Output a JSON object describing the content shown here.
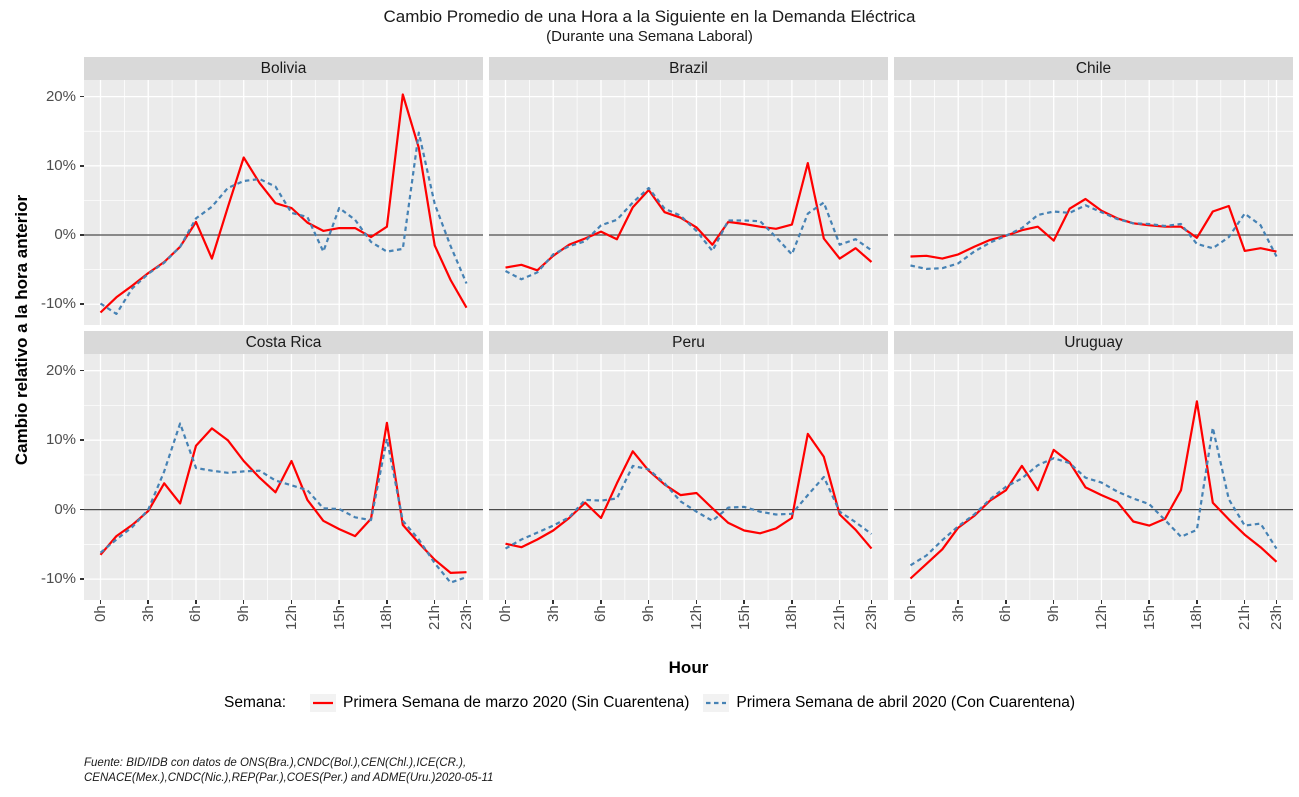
{
  "title": "Cambio Promedio de una Hora a la Siguiente en la Demanda Eléctrica",
  "subtitle": "(Durante una Semana Laboral)",
  "y_axis": {
    "label": "Cambio relativo a la hora anterior",
    "ticks": [
      "20%",
      "10%",
      "0%",
      "-10%"
    ],
    "tick_values": [
      20,
      10,
      0,
      -10
    ],
    "minor_values": [
      15,
      5,
      -5
    ],
    "range": [
      -13,
      22.4
    ]
  },
  "x_axis": {
    "label": "Hour",
    "ticks": [
      "0h",
      "3h",
      "6h",
      "9h",
      "12h",
      "15h",
      "18h",
      "21h",
      "23h"
    ],
    "tick_values": [
      0,
      3,
      6,
      9,
      12,
      15,
      18,
      21,
      23
    ],
    "minor_values": [
      1.5,
      4.5,
      7.5,
      10.5,
      13.5,
      16.5,
      19.5,
      22.5
    ],
    "range": [
      0,
      23
    ]
  },
  "legend": {
    "title": "Semana:",
    "series": [
      {
        "label": "Primera Semana de marzo 2020 (Sin Cuarentena)",
        "color": "#FF0000",
        "dash": "solid"
      },
      {
        "label": "Primera Semana de abril 2020 (Con Cuarentena)",
        "color": "#4682B4",
        "dash": "dashed"
      }
    ]
  },
  "caption": {
    "line1": "Fuente: BID/IDB con datos de ONS(Bra.),CNDC(Bol.),CEN(Chl.),ICE(CR.),",
    "line2": "CENACE(Mex.),CNDC(Nic.),REP(Par.),COES(Per.) and ADME(Uru.)2020-05-11"
  },
  "colors": {
    "panel_bg": "#EBEBEB",
    "grid": "#FFFFFF",
    "strip_bg": "#D9D9D9",
    "zero_line": "#4A4A4A",
    "legend_key_bg": "#F2F2F2"
  },
  "chart_data": {
    "type": "line",
    "x": [
      0,
      1,
      2,
      3,
      4,
      5,
      6,
      7,
      8,
      9,
      10,
      11,
      12,
      13,
      14,
      15,
      16,
      17,
      18,
      19,
      20,
      21,
      22,
      23
    ],
    "xlabel": "Hour",
    "ylabel": "Cambio relativo a la hora anterior",
    "ylim": [
      -13,
      22.4
    ],
    "grid": "on",
    "legend_position": "bottom",
    "panels": [
      {
        "title": "Bolivia",
        "series": [
          {
            "name": "Primera Semana de marzo 2020 (Sin Cuarentena)",
            "values": [
              -11.2,
              -9.0,
              -7.3,
              -5.5,
              -3.9,
              -1.7,
              1.9,
              -3.4,
              4.0,
              11.2,
              7.5,
              4.6,
              3.9,
              1.8,
              0.6,
              1.0,
              1.0,
              -0.3,
              1.2,
              20.3,
              12.6,
              -1.5,
              -6.5,
              -10.5
            ]
          },
          {
            "name": "Primera Semana de abril 2020 (Con Cuarentena)",
            "values": [
              -9.9,
              -11.4,
              -7.7,
              -5.6,
              -4.0,
              -1.7,
              2.4,
              4.1,
              6.8,
              7.8,
              8.1,
              7.0,
              3.2,
              2.6,
              -2.4,
              3.9,
              2.2,
              -1.0,
              -2.4,
              -2.0,
              14.8,
              4.5,
              -1.6,
              -7.0
            ]
          }
        ]
      },
      {
        "title": "Brazil",
        "series": [
          {
            "name": "Primera Semana de marzo 2020 (Sin Cuarentena)",
            "values": [
              -4.7,
              -4.3,
              -5.1,
              -3.0,
              -1.4,
              -0.5,
              0.5,
              -0.6,
              4.0,
              6.5,
              3.3,
              2.5,
              1.1,
              -1.4,
              1.9,
              1.6,
              1.2,
              0.9,
              1.5,
              10.4,
              -0.5,
              -3.4,
              -1.9,
              -3.9
            ]
          },
          {
            "name": "Primera Semana de abril 2020 (Con Cuarentena)",
            "values": [
              -5.2,
              -6.4,
              -5.4,
              -2.8,
              -1.6,
              -0.9,
              1.4,
              2.2,
              4.7,
              6.8,
              3.8,
              2.8,
              0.6,
              -2.3,
              2.1,
              2.1,
              2.0,
              -0.3,
              -2.8,
              3.1,
              4.7,
              -1.4,
              -0.6,
              -2.2
            ]
          }
        ]
      },
      {
        "title": "Chile",
        "series": [
          {
            "name": "Primera Semana de marzo 2020 (Sin Cuarentena)",
            "values": [
              -3.1,
              -3.0,
              -3.4,
              -2.8,
              -1.7,
              -0.7,
              -0.1,
              0.7,
              1.2,
              -0.8,
              3.8,
              5.2,
              3.5,
              2.4,
              1.7,
              1.4,
              1.2,
              1.2,
              -0.4,
              3.4,
              4.2,
              -2.3,
              -1.9,
              -2.4
            ]
          },
          {
            "name": "Primera Semana de abril 2020 (Con Cuarentena)",
            "values": [
              -4.4,
              -4.9,
              -4.8,
              -4.1,
              -2.4,
              -1.1,
              -0.1,
              1.0,
              2.9,
              3.4,
              3.2,
              4.3,
              3.3,
              2.3,
              1.7,
              1.6,
              1.3,
              1.6,
              -1.3,
              -1.9,
              -0.3,
              3.1,
              1.4,
              -3.1
            ]
          }
        ]
      },
      {
        "title": "Costa Rica",
        "series": [
          {
            "name": "Primera Semana de marzo 2020 (Sin Cuarentena)",
            "values": [
              -6.5,
              -3.8,
              -2.2,
              -0.2,
              3.8,
              0.9,
              9.2,
              11.7,
              10.0,
              7.0,
              4.6,
              2.5,
              7.0,
              1.4,
              -1.6,
              -2.8,
              -3.8,
              -1.3,
              12.5,
              -2.2,
              -4.8,
              -7.2,
              -9.1,
              -9.0
            ]
          },
          {
            "name": "Primera Semana de abril 2020 (Con Cuarentena)",
            "values": [
              -6.2,
              -4.3,
              -2.5,
              0.0,
              5.5,
              12.4,
              6.0,
              5.6,
              5.3,
              5.5,
              5.6,
              4.2,
              3.5,
              2.8,
              0.2,
              0.1,
              -1.1,
              -1.5,
              10.2,
              -1.6,
              -4.3,
              -7.7,
              -10.5,
              -9.7
            ]
          }
        ]
      },
      {
        "title": "Peru",
        "series": [
          {
            "name": "Primera Semana de marzo 2020 (Sin Cuarentena)",
            "values": [
              -4.9,
              -5.4,
              -4.3,
              -3.0,
              -1.2,
              1.0,
              -1.2,
              3.8,
              8.4,
              5.6,
              3.6,
              2.1,
              2.4,
              0.2,
              -1.9,
              -3.0,
              -3.4,
              -2.7,
              -1.2,
              10.9,
              7.6,
              -0.7,
              -2.9,
              -5.6
            ]
          },
          {
            "name": "Primera Semana de abril 2020 (Con Cuarentena)",
            "values": [
              -5.6,
              -4.3,
              -3.3,
              -2.3,
              -1.1,
              1.4,
              1.3,
              1.6,
              6.3,
              5.8,
              3.8,
              1.2,
              -0.3,
              -1.6,
              0.3,
              0.4,
              -0.3,
              -0.7,
              -0.6,
              2.1,
              4.7,
              -0.3,
              -1.8,
              -3.5
            ]
          }
        ]
      },
      {
        "title": "Uruguay",
        "series": [
          {
            "name": "Primera Semana de marzo 2020 (Sin Cuarentena)",
            "values": [
              -9.9,
              -7.8,
              -5.7,
              -2.6,
              -0.9,
              1.3,
              2.8,
              6.3,
              2.8,
              8.6,
              6.8,
              3.2,
              2.1,
              1.1,
              -1.7,
              -2.3,
              -1.3,
              2.8,
              15.6,
              1.0,
              -1.4,
              -3.6,
              -5.4,
              -7.5
            ]
          },
          {
            "name": "Primera Semana de abril 2020 (Con Cuarentena)",
            "values": [
              -8.0,
              -6.6,
              -4.4,
              -2.4,
              -0.7,
              1.5,
              3.3,
              4.5,
              6.4,
              7.4,
              6.7,
              4.6,
              3.9,
              2.6,
              1.6,
              0.8,
              -1.5,
              -3.9,
              -2.9,
              11.8,
              1.5,
              -2.3,
              -2.0,
              -5.6
            ]
          }
        ]
      }
    ]
  }
}
